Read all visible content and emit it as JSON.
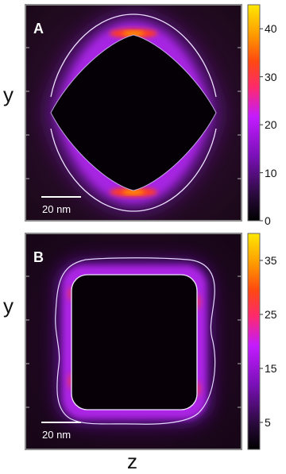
{
  "colors": {
    "frame": "#8a8a8a",
    "contour": "#e8e4ff",
    "background": "#1e0b1e",
    "colormap": [
      "#000000",
      "#2a0a3c",
      "#7a10b8",
      "#c31bff",
      "#ff2a2a",
      "#ff8c00",
      "#ffe000",
      "#ffffb0"
    ]
  },
  "chart_data": [
    {
      "type": "heatmap",
      "panel_label": "A",
      "ylabel": "y",
      "xlabel": "",
      "scale_bar": "20 nm",
      "colorbar_ticks": [
        {
          "label": "40",
          "value": 40
        },
        {
          "label": "30",
          "value": 30
        },
        {
          "label": "20",
          "value": 20
        },
        {
          "label": "10",
          "value": 10
        },
        {
          "label": "0",
          "value": 0
        }
      ],
      "colorbar_range": [
        0,
        45
      ]
    },
    {
      "type": "heatmap",
      "panel_label": "B",
      "ylabel": "y",
      "xlabel": "z",
      "scale_bar": "20 nm",
      "colorbar_ticks": [
        {
          "label": "35",
          "value": 35
        },
        {
          "label": "25",
          "value": 25
        },
        {
          "label": "15",
          "value": 15
        },
        {
          "label": "5",
          "value": 5
        }
      ],
      "colorbar_range": [
        0,
        40
      ]
    }
  ]
}
